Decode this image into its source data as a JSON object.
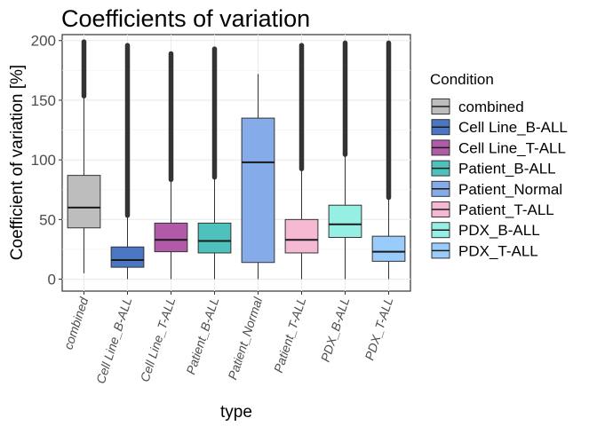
{
  "chart_data": {
    "type": "box",
    "title": "Coefficients of variation",
    "xlabel": "type",
    "ylabel": "Coefficient of variation [%]",
    "ylim": [
      -10,
      205
    ],
    "yticks": [
      0,
      50,
      100,
      150,
      200
    ],
    "grid": true,
    "legend": {
      "title": "Condition",
      "position": "right"
    },
    "categories": [
      "combined",
      "Cell Line_B-ALL",
      "Cell Line_T-ALL",
      "Patient_B-ALL",
      "Patient_Normal",
      "Patient_T-ALL",
      "PDX_B-ALL",
      "PDX_T-ALL"
    ],
    "series": [
      {
        "name": "combined",
        "color": "#bdbdbd",
        "whisker_low": 5,
        "q1": 43,
        "median": 60,
        "q3": 87,
        "whisker_high": 152,
        "outlier_range": [
          152,
          199
        ]
      },
      {
        "name": "Cell Line_B-ALL",
        "color": "#4a76c4",
        "whisker_low": 0,
        "q1": 10,
        "median": 16,
        "q3": 27,
        "whisker_high": 52,
        "outlier_range": [
          52,
          196
        ]
      },
      {
        "name": "Cell Line_T-ALL",
        "color": "#b05aa8",
        "whisker_low": 0,
        "q1": 23,
        "median": 33,
        "q3": 47,
        "whisker_high": 82,
        "outlier_range": [
          82,
          189
        ]
      },
      {
        "name": "Patient_B-ALL",
        "color": "#4fc1bc",
        "whisker_low": 0,
        "q1": 22,
        "median": 32,
        "q3": 47,
        "whisker_high": 84,
        "outlier_range": [
          84,
          193
        ]
      },
      {
        "name": "Patient_Normal",
        "color": "#85abe8",
        "whisker_low": 0,
        "q1": 14,
        "median": 98,
        "q3": 135,
        "whisker_high": 172,
        "outlier_range": []
      },
      {
        "name": "Patient_T-ALL",
        "color": "#f6b9d3",
        "whisker_low": 0,
        "q1": 22,
        "median": 33,
        "q3": 50,
        "whisker_high": 91,
        "outlier_range": [
          91,
          196
        ]
      },
      {
        "name": "PDX_B-ALL",
        "color": "#95efe2",
        "whisker_low": 0,
        "q1": 35,
        "median": 46,
        "q3": 62,
        "whisker_high": 103,
        "outlier_range": [
          103,
          198
        ]
      },
      {
        "name": "PDX_T-ALL",
        "color": "#99ccfb",
        "whisker_low": 0,
        "q1": 15,
        "median": 23,
        "q3": 36,
        "whisker_high": 67,
        "outlier_range": [
          67,
          198
        ]
      }
    ]
  }
}
